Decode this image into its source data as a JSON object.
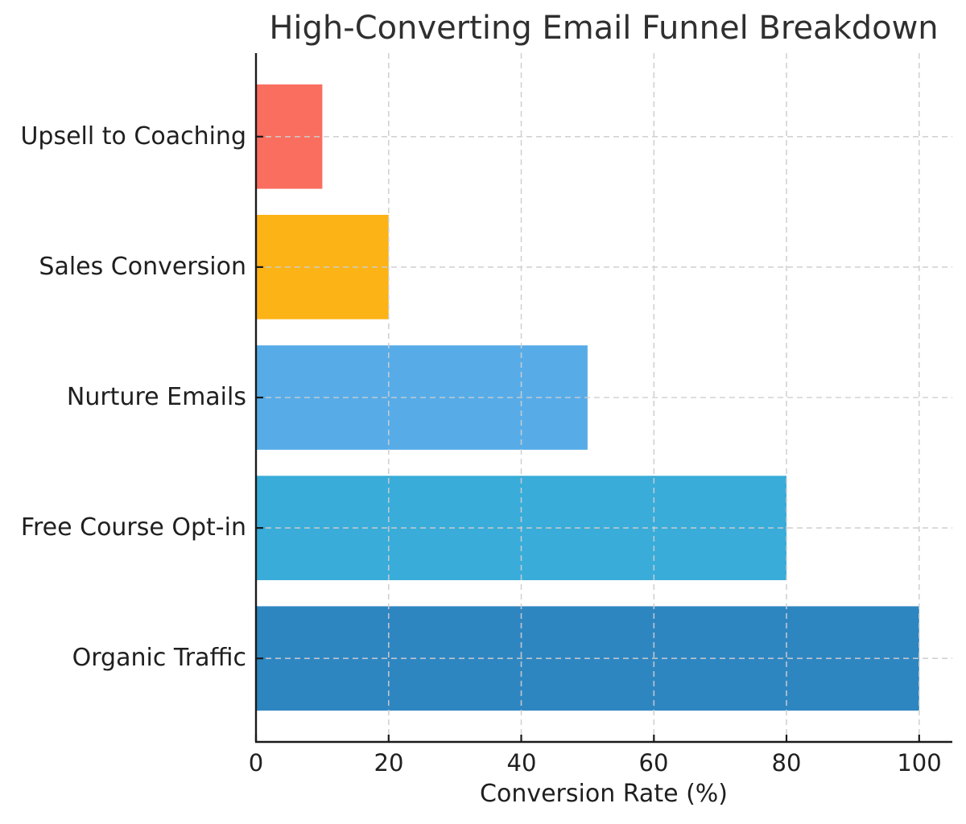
{
  "chart_data": {
    "type": "bar",
    "orientation": "horizontal",
    "title": "High-Converting Email Funnel Breakdown",
    "xlabel": "Conversion Rate (%)",
    "ylabel": "",
    "categories": [
      "Upsell to Coaching",
      "Sales Conversion",
      "Nurture Emails",
      "Free Course Opt-in",
      "Organic Traffic"
    ],
    "values": [
      10,
      20,
      50,
      80,
      100
    ],
    "bar_colors": [
      "#fa6e5f",
      "#fcb316",
      "#57ace8",
      "#39acd9",
      "#2e86c1"
    ],
    "xticks": [
      0,
      20,
      40,
      60,
      80,
      100
    ],
    "xlim": [
      0,
      105
    ],
    "grid": "dashed light-gray gridlines on both axes",
    "gridline_color": "#cdcdcd",
    "axis_color": "#1a1a1a",
    "text_color": "#2f2f2f",
    "background_color": "#ffffff",
    "legend": "none"
  }
}
